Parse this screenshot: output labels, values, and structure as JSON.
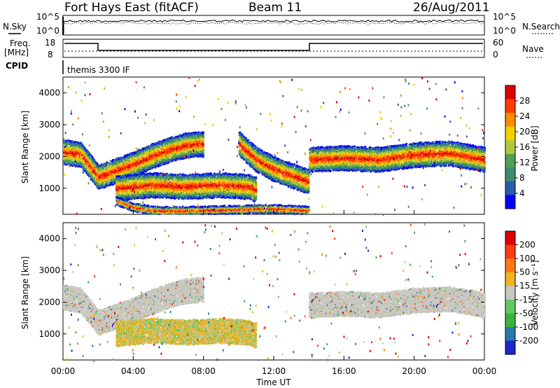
{
  "header": {
    "station": "Fort Hays East (fitACF)",
    "beam": "Beam 11",
    "date": "26/Aug/2011"
  },
  "info_panels": {
    "nsky_label": "N.Sky",
    "nsearch_label": "N.Search",
    "nsky_ticks": [
      "10^5",
      "10^0"
    ],
    "nsearch_ticks": [
      "10^5",
      "10^0"
    ],
    "freq_label_line1": "Freq.",
    "freq_label_line2": "[MHz]",
    "freq_ticks": [
      "18",
      "8"
    ],
    "nave_label": "Nave",
    "nave_ticks": [
      "60",
      "0"
    ],
    "cpid_label": "CPID",
    "cpid_text": "themis 3300 IF"
  },
  "chart_data": [
    {
      "type": "heatmap",
      "name": "power",
      "xlabel": "Time UT",
      "ylabel": "Slant Range [km]",
      "x_ticks": [
        "00:00",
        "04:00",
        "08:00",
        "12:00",
        "16:00",
        "20:00",
        "00:00"
      ],
      "x_range_hours": [
        0,
        24
      ],
      "y_ticks": [
        1000,
        2000,
        3000,
        4000
      ],
      "ylim": [
        180,
        4500
      ],
      "colorbar_label": "Power [dB]",
      "colorbar_ticks": [
        "28",
        "24",
        "20",
        "16",
        "12",
        "8",
        "4"
      ],
      "colorbar_range": [
        0,
        30
      ],
      "colors": [
        "#0000ff",
        "#2a5caa",
        "#3c8c6e",
        "#4fa04f",
        "#b4c83c",
        "#f0d200",
        "#ff8c00",
        "#ff3c00",
        "#dc0000"
      ],
      "echo_bands_km_vs_hour": [
        {
          "t": [
            0.0,
            1.0,
            2.0,
            3.0,
            4.0,
            5.0,
            6.0,
            7.0,
            8.0
          ],
          "r": [
            2150,
            2050,
            1350,
            1550,
            1750,
            2000,
            2200,
            2350,
            2400
          ]
        },
        {
          "t": [
            3.0,
            5.0,
            7.0,
            9.0,
            10.5,
            11.0
          ],
          "r": [
            1000,
            1100,
            1050,
            1100,
            1050,
            950
          ]
        },
        {
          "t": [
            10.0,
            11.0,
            12.0,
            13.0,
            14.0
          ],
          "r": [
            2400,
            1900,
            1600,
            1400,
            1200
          ]
        },
        {
          "t": [
            14.0,
            16.0,
            18.0,
            20.0,
            22.0,
            24.0
          ],
          "r": [
            1900,
            1950,
            1900,
            2050,
            2100,
            1900
          ]
        },
        {
          "t": [
            3.0,
            4.0,
            5.0,
            6.0,
            8.0,
            12.0,
            14.0
          ],
          "r": [
            600,
            400,
            300,
            280,
            300,
            350,
            300
          ]
        }
      ]
    },
    {
      "type": "heatmap",
      "name": "velocity",
      "xlabel": "Time UT",
      "ylabel": "Slant Range [km]",
      "x_ticks": [
        "00:00",
        "04:00",
        "08:00",
        "12:00",
        "16:00",
        "20:00",
        "00:00"
      ],
      "x_range_hours": [
        0,
        24
      ],
      "y_ticks": [
        1000,
        2000,
        3000,
        4000
      ],
      "ylim": [
        180,
        4500
      ],
      "colorbar_label": "Velocity [m s⁻¹]",
      "colorbar_ticks": [
        "200",
        "100",
        "50",
        "15",
        "-15",
        "-50",
        "-100",
        "-200"
      ],
      "colorbar_range": [
        -250,
        250
      ],
      "colors": [
        "#1e28c8",
        "#2878aa",
        "#3cb43c",
        "#64c864",
        "#c8c8c0",
        "#f0b41e",
        "#ff7814",
        "#ff3c14",
        "#dc0000"
      ],
      "echo_bands_km_vs_hour": [
        {
          "t": [
            0.0,
            1.0,
            2.0,
            3.0,
            4.0,
            5.0,
            6.0,
            7.0,
            8.0
          ],
          "r": [
            2150,
            2050,
            1350,
            1550,
            1750,
            2000,
            2200,
            2350,
            2400
          ],
          "dominant": "-15 to 15"
        },
        {
          "t": [
            3.0,
            5.0,
            7.0,
            9.0,
            10.5,
            11.0
          ],
          "r": [
            1000,
            1100,
            1050,
            1100,
            1050,
            950
          ],
          "dominant": "-50 to -15 and 15 to 50"
        },
        {
          "t": [
            14.0,
            16.0,
            18.0,
            20.0,
            22.0,
            24.0
          ],
          "r": [
            1900,
            1950,
            1900,
            2050,
            2100,
            1900
          ],
          "dominant": "-15 to 15"
        }
      ]
    }
  ]
}
